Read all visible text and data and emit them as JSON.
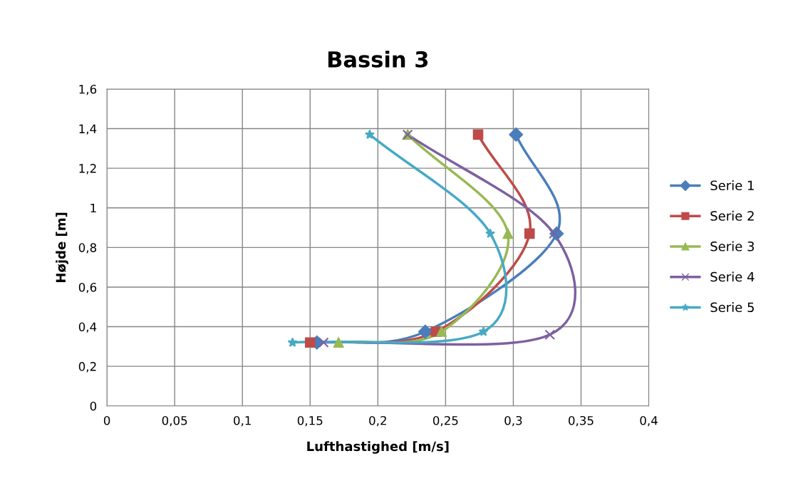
{
  "chart_data": {
    "type": "line",
    "title": "Bassin 3",
    "xlabel": "Lufthastighed [m/s]",
    "ylabel": "Højde [m]",
    "xlim": [
      0,
      0.4
    ],
    "xticks": [
      {
        "value": 0,
        "label": "0"
      },
      {
        "value": 0.05,
        "label": "0,05"
      },
      {
        "value": 0.1,
        "label": "0,1"
      },
      {
        "value": 0.15,
        "label": "0,15"
      },
      {
        "value": 0.2,
        "label": "0,2"
      },
      {
        "value": 0.25,
        "label": "0,25"
      },
      {
        "value": 0.3,
        "label": "0,3"
      },
      {
        "value": 0.35,
        "label": "0,35"
      },
      {
        "value": 0.4,
        "label": "0,4"
      }
    ],
    "ylim": [
      0,
      1.6
    ],
    "yticks": [
      {
        "value": 0,
        "label": "0"
      },
      {
        "value": 0.2,
        "label": "0,2"
      },
      {
        "value": 0.4,
        "label": "0,4"
      },
      {
        "value": 0.6,
        "label": "0,6"
      },
      {
        "value": 0.8,
        "label": "0,8"
      },
      {
        "value": 1,
        "label": "1"
      },
      {
        "value": 1.2,
        "label": "1,2"
      },
      {
        "value": 1.4,
        "label": "1,4"
      },
      {
        "value": 1.6,
        "label": "1,6"
      }
    ],
    "grid": true,
    "legend": "right",
    "series": [
      {
        "name": "Serie 1",
        "color": "#4a7ebb",
        "marker": "diamond",
        "x": [
          0.155,
          0.235,
          0.332,
          0.302
        ],
        "values": [
          0.32,
          0.375,
          0.87,
          1.37
        ]
      },
      {
        "name": "Serie 2",
        "color": "#be4b48",
        "marker": "square",
        "x": [
          0.15,
          0.243,
          0.312,
          0.274
        ],
        "values": [
          0.32,
          0.375,
          0.87,
          1.37
        ]
      },
      {
        "name": "Serie 3",
        "color": "#98b954",
        "marker": "triangle",
        "x": [
          0.171,
          0.247,
          0.296,
          0.222
        ],
        "values": [
          0.32,
          0.375,
          0.87,
          1.37
        ]
      },
      {
        "name": "Serie 4",
        "color": "#7d60a0",
        "marker": "cross",
        "x": [
          0.16,
          0.327,
          0.33,
          0.222
        ],
        "values": [
          0.32,
          0.36,
          0.87,
          1.37
        ]
      },
      {
        "name": "Serie 5",
        "color": "#46aac5",
        "marker": "star",
        "x": [
          0.137,
          0.278,
          0.283,
          0.194
        ],
        "values": [
          0.32,
          0.375,
          0.87,
          1.37
        ]
      }
    ]
  }
}
